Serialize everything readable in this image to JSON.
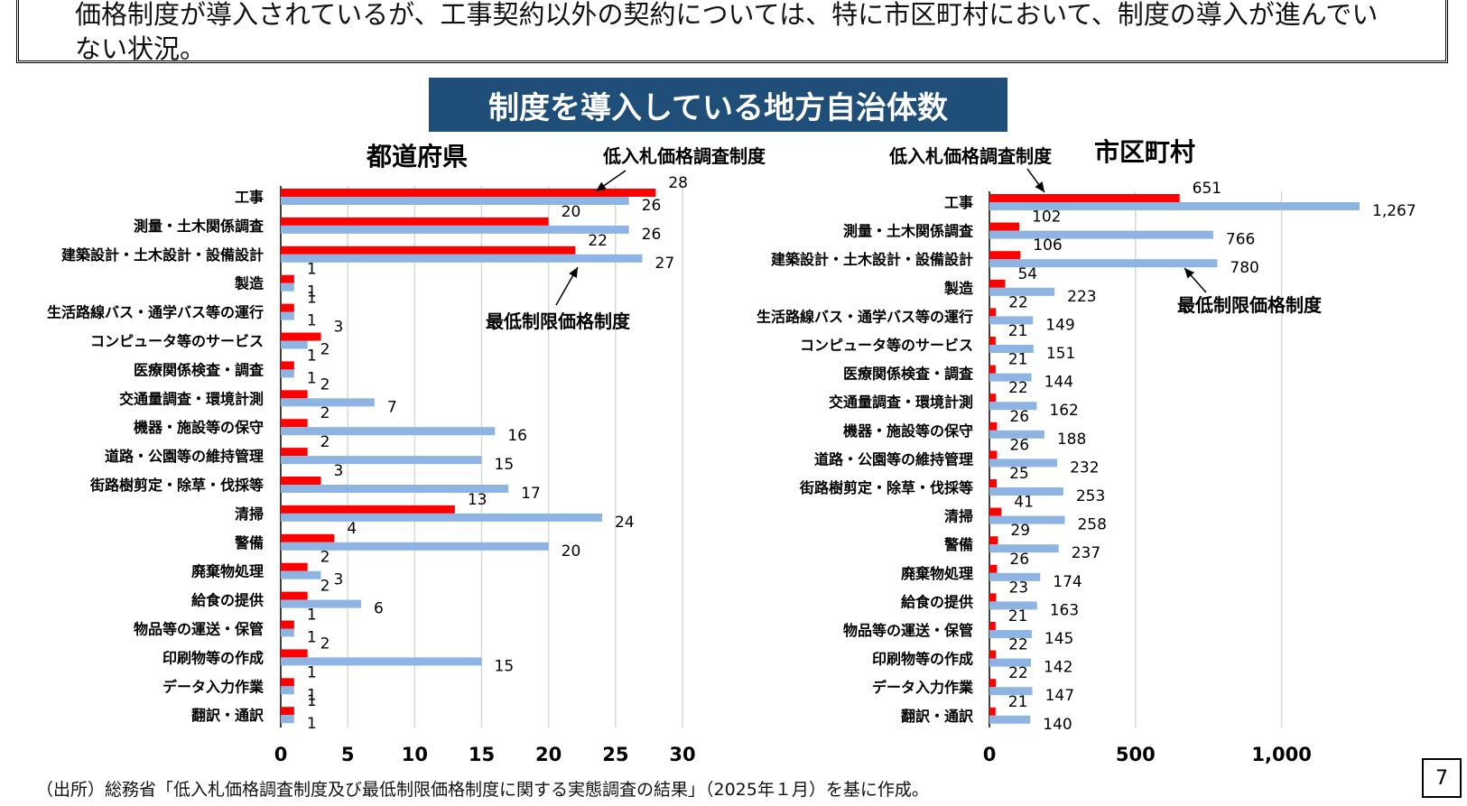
{
  "summary": {
    "text": "価格制度が導入されているが、工事契約以外の契約については、特に市区町村において、制度の導入が進んでい\nない状況。"
  },
  "title": "制度を導入している地方自治体数",
  "source": "（出所）総務省「低入札価格調査制度及び最低制限価格制度に関する実態調査の結果」（2025年１月）を基に作成。",
  "page_number": "7",
  "colors": {
    "banner": "#1f4e79",
    "series_red": "#ff0000",
    "series_blue": "#8eb4e3",
    "grid": "#d9d9d9"
  },
  "chart_data": [
    {
      "type": "bar",
      "orientation": "horizontal",
      "title": "都道府県",
      "categories": [
        "工事",
        "測量・土木関係調査",
        "建築設計・土木設計・設備設計",
        "製造",
        "生活路線バス・通学バス等の運行",
        "コンピュータ等のサービス",
        "医療関係検査・調査",
        "交通量調査・環境計測",
        "機器・施設等の保守",
        "道路・公園等の維持管理",
        "街路樹剪定・除草・伐採等",
        "清掃",
        "警備",
        "廃棄物処理",
        "給食の提供",
        "物品等の運送・保管",
        "印刷物等の作成",
        "データ入力作業",
        "翻訳・通訳"
      ],
      "series": [
        {
          "name": "低入札価格調査制度",
          "values": [
            28,
            20,
            22,
            1,
            1,
            3,
            1,
            2,
            2,
            2,
            3,
            13,
            4,
            2,
            2,
            1,
            2,
            1,
            1
          ],
          "labels": [
            "28",
            "20",
            "22",
            "1",
            "1",
            "3",
            "1",
            "2",
            "2",
            "2",
            "3",
            "13",
            "4",
            "2",
            "2",
            "1",
            "2",
            "1",
            "1"
          ]
        },
        {
          "name": "最低制限価格制度",
          "values": [
            26,
            26,
            27,
            1,
            1,
            2,
            1,
            7,
            16,
            15,
            17,
            24,
            20,
            3,
            6,
            1,
            15,
            1,
            1
          ],
          "labels": [
            "26",
            "26",
            "27",
            "1",
            "1",
            "2",
            "1",
            "7",
            "16",
            "15",
            "17",
            "24",
            "20",
            "3",
            "6",
            "1",
            "15",
            "1",
            "1"
          ]
        }
      ],
      "xlim": [
        0,
        30
      ],
      "ticks": [
        0,
        5,
        10,
        15,
        20,
        25,
        30
      ],
      "tick_labels": [
        "0",
        "5",
        "10",
        "15",
        "20",
        "25",
        "30"
      ],
      "grid": true,
      "annotations": [
        "低入札価格調査制度",
        "最低制限価格制度"
      ]
    },
    {
      "type": "bar",
      "orientation": "horizontal",
      "title": "市区町村",
      "categories": [
        "工事",
        "測量・土木関係調査",
        "建築設計・土木設計・設備設計",
        "製造",
        "生活路線バス・通学バス等の運行",
        "コンピュータ等のサービス",
        "医療関係検査・調査",
        "交通量調査・環境計測",
        "機器・施設等の保守",
        "道路・公園等の維持管理",
        "街路樹剪定・除草・伐採等",
        "清掃",
        "警備",
        "廃棄物処理",
        "給食の提供",
        "物品等の運送・保管",
        "印刷物等の作成",
        "データ入力作業",
        "翻訳・通訳"
      ],
      "series": [
        {
          "name": "低入札価格調査制度",
          "values": [
            651,
            102,
            106,
            54,
            22,
            21,
            21,
            22,
            26,
            26,
            25,
            41,
            29,
            26,
            23,
            21,
            22,
            22,
            21
          ],
          "labels": [
            "651",
            "102",
            "106",
            "54",
            "22",
            "21",
            "21",
            "22",
            "26",
            "26",
            "25",
            "41",
            "29",
            "26",
            "23",
            "21",
            "22",
            "22",
            "21"
          ]
        },
        {
          "name": "最低制限価格制度",
          "values": [
            1267,
            766,
            780,
            223,
            149,
            151,
            144,
            162,
            188,
            232,
            253,
            258,
            237,
            174,
            163,
            145,
            142,
            147,
            140
          ],
          "labels": [
            "1,267",
            "766",
            "780",
            "223",
            "149",
            "151",
            "144",
            "162",
            "188",
            "232",
            "253",
            "258",
            "237",
            "174",
            "163",
            "145",
            "142",
            "147",
            "140"
          ]
        }
      ],
      "xlim": [
        0,
        1300
      ],
      "ticks": [
        0,
        500,
        1000
      ],
      "tick_labels": [
        "0",
        "500",
        "1,000"
      ],
      "grid": true,
      "annotations": [
        "低入札価格調査制度",
        "最低制限価格制度"
      ]
    }
  ]
}
